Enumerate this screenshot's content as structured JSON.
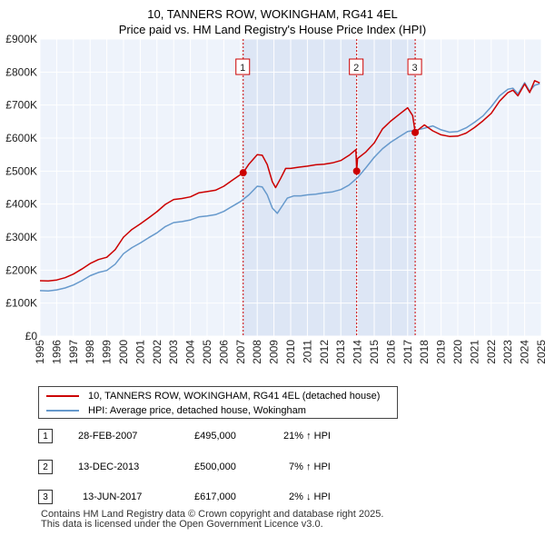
{
  "chart_data": {
    "type": "line",
    "title": "10, TANNERS ROW, WOKINGHAM, RG41 4EL",
    "subtitle": "Price paid vs. HM Land Registry's House Price Index (HPI)",
    "xlim": [
      1995,
      2025
    ],
    "ylim": [
      0,
      900000
    ],
    "x_ticks": [
      "1995",
      "1996",
      "1997",
      "1998",
      "1999",
      "2000",
      "2001",
      "2002",
      "2003",
      "2004",
      "2005",
      "2006",
      "2007",
      "2008",
      "2009",
      "2010",
      "2011",
      "2012",
      "2013",
      "2014",
      "2015",
      "2016",
      "2017",
      "2018",
      "2019",
      "2020",
      "2021",
      "2022",
      "2023",
      "2024",
      "2025"
    ],
    "y_ticks": [
      {
        "value": 0,
        "label": "£0"
      },
      {
        "value": 100000,
        "label": "£100K"
      },
      {
        "value": 200000,
        "label": "£200K"
      },
      {
        "value": 300000,
        "label": "£300K"
      },
      {
        "value": 400000,
        "label": "£400K"
      },
      {
        "value": 500000,
        "label": "£500K"
      },
      {
        "value": 600000,
        "label": "£600K"
      },
      {
        "value": 700000,
        "label": "£700K"
      },
      {
        "value": 800000,
        "label": "£800K"
      },
      {
        "value": 900000,
        "label": "£900K"
      }
    ],
    "shaded_span": [
      2007.16,
      2017.45
    ],
    "series": [
      {
        "name": "10, TANNERS ROW, WOKINGHAM, RG41 4EL (detached house)",
        "color": "#cc0000",
        "x": [
          1995,
          1995.5,
          1996,
          1996.5,
          1997,
          1997.5,
          1998,
          1998.5,
          1999,
          1999.5,
          2000,
          2000.5,
          2001,
          2001.5,
          2002,
          2002.5,
          2003,
          2003.5,
          2004,
          2004.5,
          2005,
          2005.5,
          2006,
          2006.5,
          2007.16,
          2007.5,
          2008,
          2008.3,
          2008.6,
          2008.9,
          2009.1,
          2009.4,
          2009.7,
          2010,
          2010.5,
          2011,
          2011.5,
          2012,
          2012.5,
          2013,
          2013.5,
          2013.9,
          2013.95,
          2014,
          2014.5,
          2015,
          2015.5,
          2016,
          2016.5,
          2017,
          2017.3,
          2017.45,
          2017.7,
          2018,
          2018.5,
          2019,
          2019.5,
          2020,
          2020.5,
          2021,
          2021.5,
          2022,
          2022.5,
          2023,
          2023.3,
          2023.6,
          2024,
          2024.3,
          2024.6,
          2024.9
        ],
        "y": [
          168000,
          167000,
          170000,
          177000,
          188000,
          203000,
          220000,
          232000,
          239000,
          262000,
          300000,
          323000,
          340000,
          358000,
          377000,
          399000,
          414000,
          417000,
          422000,
          434000,
          438000,
          442000,
          454000,
          472000,
          495000,
          521000,
          550000,
          548000,
          520000,
          468000,
          450000,
          478000,
          508000,
          508000,
          512000,
          515000,
          519000,
          521000,
          525000,
          532000,
          548000,
          565000,
          500000,
          538000,
          558000,
          585000,
          628000,
          652000,
          672000,
          692000,
          668000,
          617000,
          628000,
          640000,
          622000,
          610000,
          605000,
          606000,
          615000,
          632000,
          652000,
          675000,
          712000,
          738000,
          745000,
          728000,
          764000,
          738000,
          774000,
          767000
        ]
      },
      {
        "name": "HPI: Average price, detached house, Wokingham",
        "color": "#6699cc",
        "x": [
          1995,
          1995.5,
          1996,
          1996.5,
          1997,
          1997.5,
          1998,
          1998.5,
          1999,
          1999.5,
          2000,
          2000.5,
          2001,
          2001.5,
          2002,
          2002.5,
          2003,
          2003.5,
          2004,
          2004.5,
          2005,
          2005.5,
          2006,
          2006.5,
          2007,
          2007.5,
          2008,
          2008.3,
          2008.6,
          2008.9,
          2009.2,
          2009.5,
          2009.8,
          2010.2,
          2010.6,
          2011,
          2011.5,
          2012,
          2012.5,
          2013,
          2013.5,
          2014,
          2014.5,
          2015,
          2015.5,
          2016,
          2016.5,
          2017,
          2017.5,
          2018,
          2018.5,
          2019,
          2019.5,
          2020,
          2020.5,
          2021,
          2021.5,
          2022,
          2022.5,
          2023,
          2023.3,
          2023.6,
          2024,
          2024.3,
          2024.6,
          2024.9
        ],
        "y": [
          138000,
          137000,
          140000,
          146000,
          155000,
          168000,
          183000,
          193000,
          199000,
          218000,
          250000,
          268000,
          282000,
          298000,
          313000,
          332000,
          344000,
          347000,
          352000,
          361000,
          364000,
          368000,
          378000,
          393000,
          408000,
          428000,
          454000,
          452000,
          428000,
          388000,
          372000,
          395000,
          418000,
          425000,
          425000,
          428000,
          430000,
          434000,
          437000,
          444000,
          458000,
          480000,
          510000,
          542000,
          568000,
          588000,
          604000,
          620000,
          624000,
          630000,
          637000,
          625000,
          618000,
          620000,
          631000,
          648000,
          667000,
          695000,
          728000,
          748000,
          751000,
          734000,
          768000,
          742000,
          760000,
          765000
        ]
      }
    ],
    "sales": [
      {
        "num": "1",
        "x": 2007.16,
        "y": 495000,
        "date": "28-FEB-2007",
        "price": "£495,000",
        "hpi": "21% ↑ HPI"
      },
      {
        "num": "2",
        "x": 2013.95,
        "y": 500000,
        "date": "13-DEC-2013",
        "price": "£500,000",
        "hpi": "7% ↑ HPI"
      },
      {
        "num": "3",
        "x": 2017.45,
        "y": 617000,
        "date": "13-JUN-2017",
        "price": "£617,000",
        "hpi": "2% ↓ HPI"
      }
    ]
  },
  "legend": {
    "property_label": "10, TANNERS ROW, WOKINGHAM, RG41 4EL (detached house)",
    "hpi_label": "HPI: Average price, detached house, Wokingham",
    "property_color": "#cc0000",
    "hpi_color": "#6699cc"
  },
  "footer": {
    "line1": "Contains HM Land Registry data © Crown copyright and database right 2025.",
    "line2": "This data is licensed under the Open Government Licence v3.0."
  }
}
